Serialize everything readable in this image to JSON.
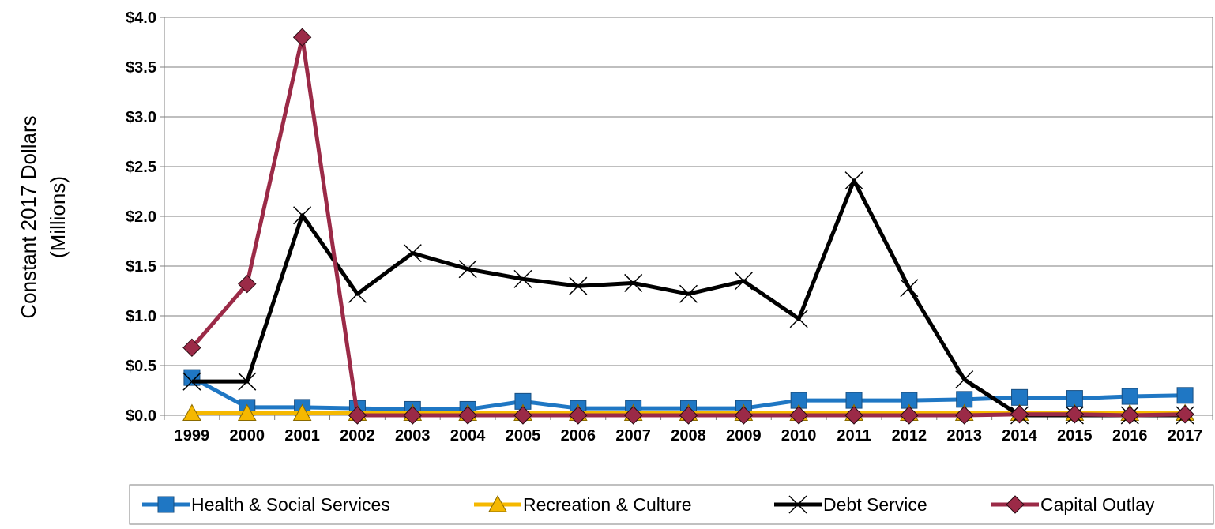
{
  "chart_data": {
    "type": "line",
    "ylabel_line1": "Constant 2017 Dollars",
    "ylabel_line2": "(Millions)",
    "ylim": [
      0,
      4.0
    ],
    "yticks": [
      {
        "value": 0.0,
        "label": "$0.0"
      },
      {
        "value": 0.5,
        "label": "$0.5"
      },
      {
        "value": 1.0,
        "label": "$1.0"
      },
      {
        "value": 1.5,
        "label": "$1.5"
      },
      {
        "value": 2.0,
        "label": "$2.0"
      },
      {
        "value": 2.5,
        "label": "$2.5"
      },
      {
        "value": 3.0,
        "label": "$3.0"
      },
      {
        "value": 3.5,
        "label": "$3.5"
      },
      {
        "value": 4.0,
        "label": "$4.0"
      }
    ],
    "categories": [
      "1999",
      "2000",
      "2001",
      "2002",
      "2003",
      "2004",
      "2005",
      "2006",
      "2007",
      "2008",
      "2009",
      "2010",
      "2011",
      "2012",
      "2013",
      "2014",
      "2015",
      "2016",
      "2017"
    ],
    "grid": true,
    "legend_position": "bottom",
    "series": [
      {
        "name": "Health & Social Services",
        "color": "#1f77c4",
        "marker": "square",
        "values": [
          0.38,
          0.08,
          0.08,
          0.07,
          0.06,
          0.06,
          0.14,
          0.07,
          0.07,
          0.07,
          0.07,
          0.15,
          0.15,
          0.15,
          0.16,
          0.18,
          0.17,
          0.19,
          0.2
        ]
      },
      {
        "name": "Recreation & Culture",
        "color": "#f5b800",
        "marker": "triangle",
        "values": [
          0.02,
          0.02,
          0.02,
          0.02,
          0.02,
          0.02,
          0.02,
          0.02,
          0.02,
          0.02,
          0.02,
          0.02,
          0.02,
          0.02,
          0.02,
          0.02,
          0.02,
          0.02,
          0.02
        ]
      },
      {
        "name": "Debt Service",
        "color": "#000000",
        "marker": "x",
        "values": [
          0.34,
          0.34,
          2.01,
          1.22,
          1.63,
          1.47,
          1.37,
          1.3,
          1.33,
          1.22,
          1.35,
          0.97,
          2.36,
          1.28,
          0.36,
          0.0,
          0.0,
          0.0,
          0.0
        ]
      },
      {
        "name": "Capital Outlay",
        "color": "#9b2a47",
        "marker": "diamond",
        "values": [
          0.68,
          1.32,
          3.8,
          0.0,
          0.0,
          0.0,
          0.0,
          0.0,
          0.0,
          0.0,
          0.0,
          0.0,
          0.0,
          0.0,
          0.0,
          0.01,
          0.01,
          0.0,
          0.01
        ]
      }
    ]
  }
}
